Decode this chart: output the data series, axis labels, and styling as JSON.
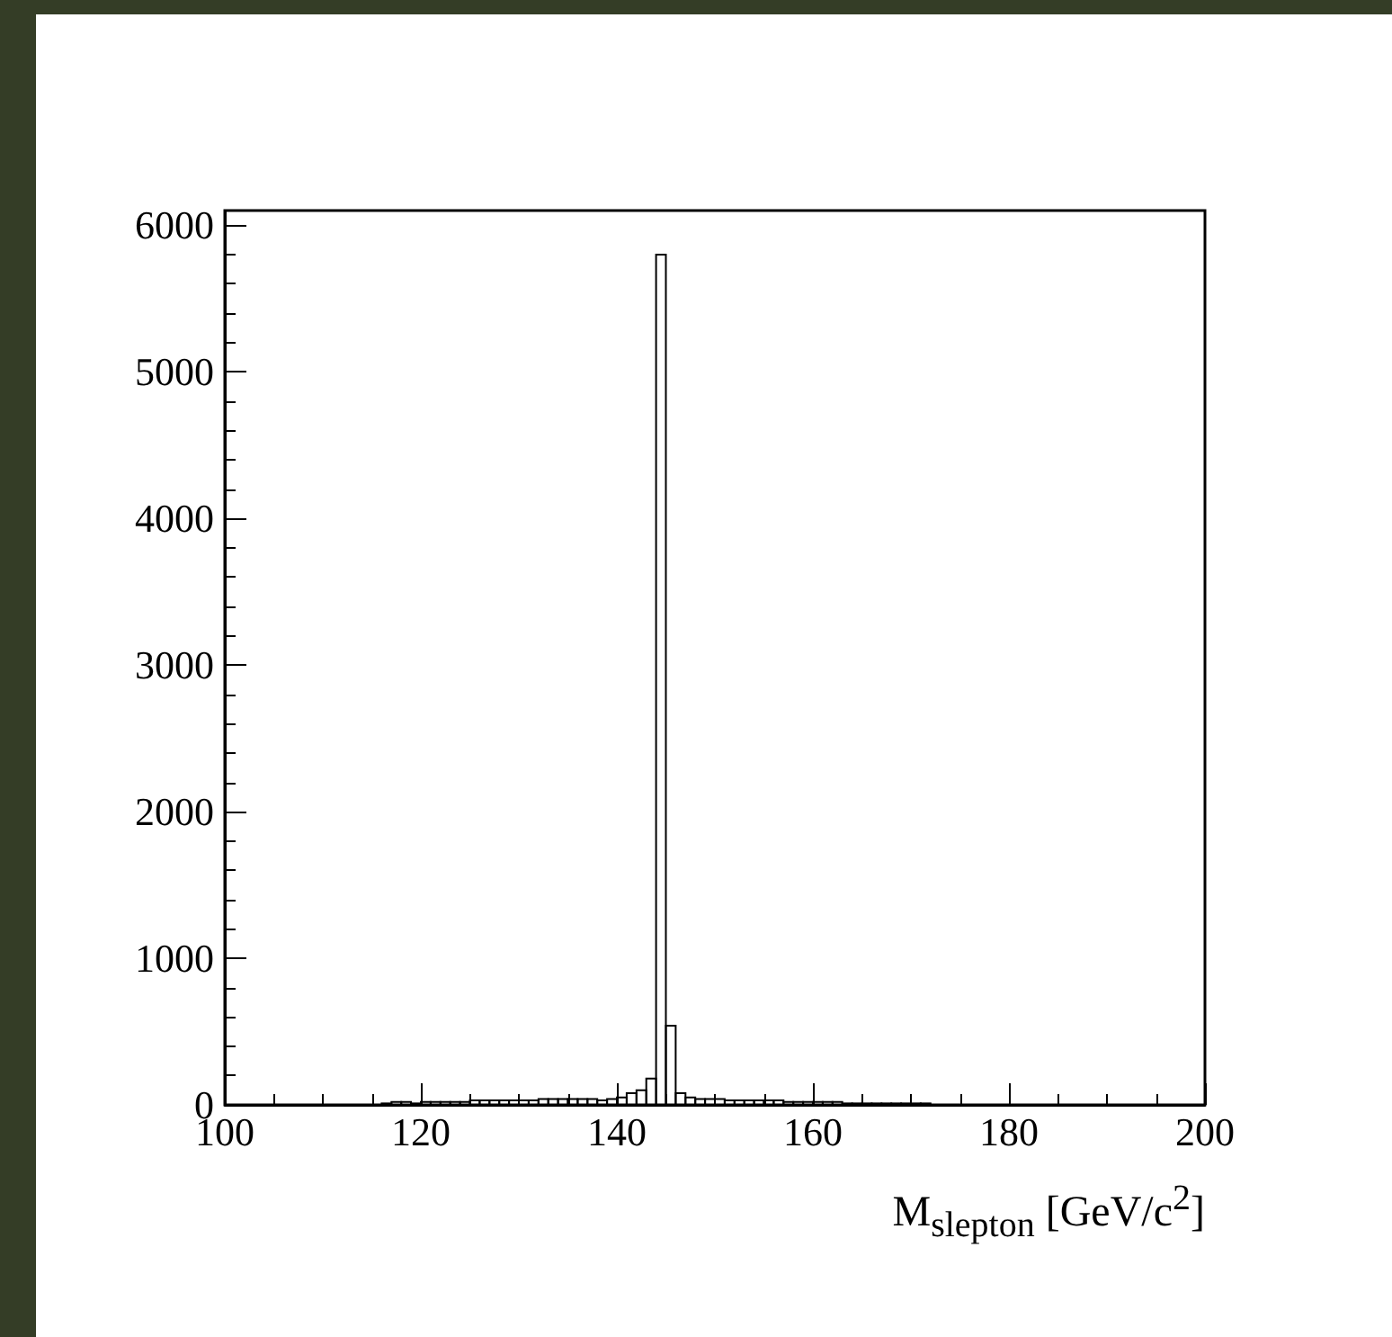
{
  "chart_data": {
    "type": "histogram",
    "xlabel": "M$_{slepton}$ [GeV/c$^{2}$]",
    "bins": [
      100,
      101,
      102,
      103,
      104,
      105,
      106,
      107,
      108,
      109,
      110,
      111,
      112,
      113,
      114,
      115,
      116,
      117,
      118,
      119,
      120,
      121,
      122,
      123,
      124,
      125,
      126,
      127,
      128,
      129,
      130,
      131,
      132,
      133,
      134,
      135,
      136,
      137,
      138,
      139,
      140,
      141,
      142,
      143,
      144,
      145,
      146,
      147,
      148,
      149,
      150,
      151,
      152,
      153,
      154,
      155,
      156,
      157,
      158,
      159,
      160,
      161,
      162,
      163,
      164,
      165,
      166,
      167,
      168,
      169,
      170,
      171,
      172,
      173,
      174,
      175,
      176,
      177,
      178,
      179,
      180,
      181,
      182,
      183,
      184,
      185,
      186,
      187,
      188,
      189,
      190,
      191,
      192,
      193,
      194,
      195,
      196,
      197,
      198,
      199,
      200
    ],
    "values": [
      0,
      0,
      0,
      0,
      0,
      0,
      0,
      0,
      0,
      0,
      0,
      0,
      0,
      0,
      0,
      0,
      10,
      20,
      20,
      10,
      20,
      20,
      20,
      20,
      20,
      30,
      30,
      30,
      30,
      30,
      30,
      30,
      40,
      40,
      40,
      40,
      40,
      40,
      30,
      40,
      50,
      80,
      100,
      180,
      5800,
      540,
      80,
      50,
      40,
      40,
      40,
      30,
      30,
      30,
      30,
      30,
      30,
      20,
      20,
      20,
      20,
      20,
      20,
      10,
      10,
      10,
      10,
      10,
      10,
      10,
      10,
      10,
      0,
      0,
      0,
      0,
      0,
      0,
      0,
      0,
      0,
      0,
      0,
      0,
      0,
      0,
      0,
      0,
      0,
      0,
      0,
      0,
      0,
      0,
      0,
      0,
      0,
      0,
      0,
      0
    ],
    "color": "#000000",
    "xlim": [
      100,
      200
    ],
    "xticks": [
      100,
      120,
      140,
      160,
      180,
      200
    ],
    "ylim": [
      0,
      6100
    ],
    "yticks": [
      0,
      1000,
      2000,
      3000,
      4000,
      5000,
      6000
    ],
    "grid": false
  }
}
